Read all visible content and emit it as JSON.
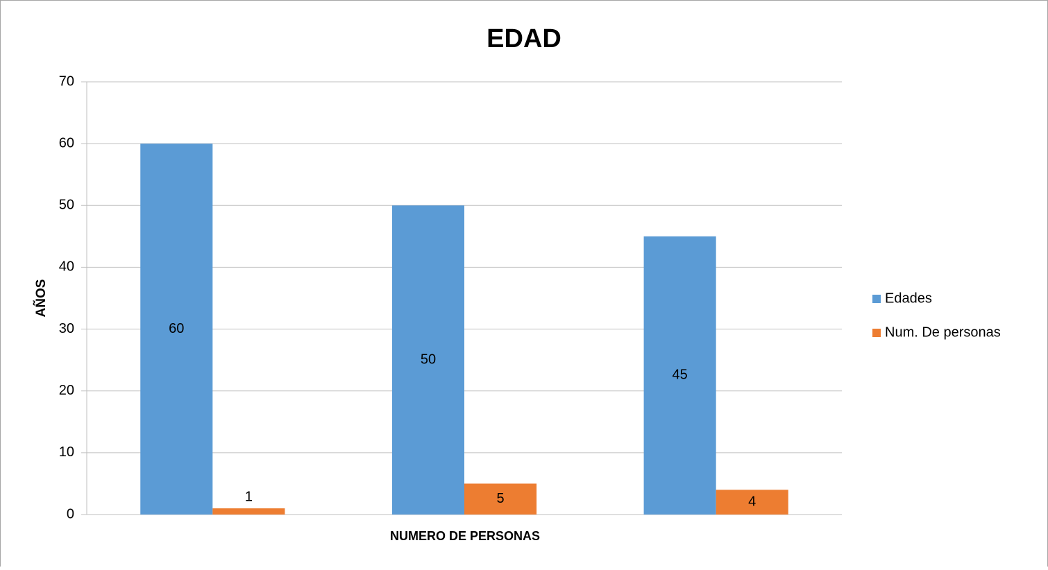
{
  "chart_data": {
    "type": "bar",
    "title": "EDAD",
    "y_label": "AÑOS",
    "x_label": "NUMERO DE PERSONAS",
    "categories": [
      null,
      null,
      null
    ],
    "series": [
      {
        "name": "Edades",
        "color": "#5b9bd5",
        "values": [
          60,
          50,
          45
        ]
      },
      {
        "name": "Num. De personas",
        "color": "#ed7d31",
        "values": [
          1,
          5,
          4
        ]
      }
    ],
    "ylim": [
      0,
      70
    ],
    "yticks": [
      0,
      10,
      20,
      30,
      40,
      50,
      60,
      70
    ],
    "grid": true,
    "legend": "right"
  }
}
